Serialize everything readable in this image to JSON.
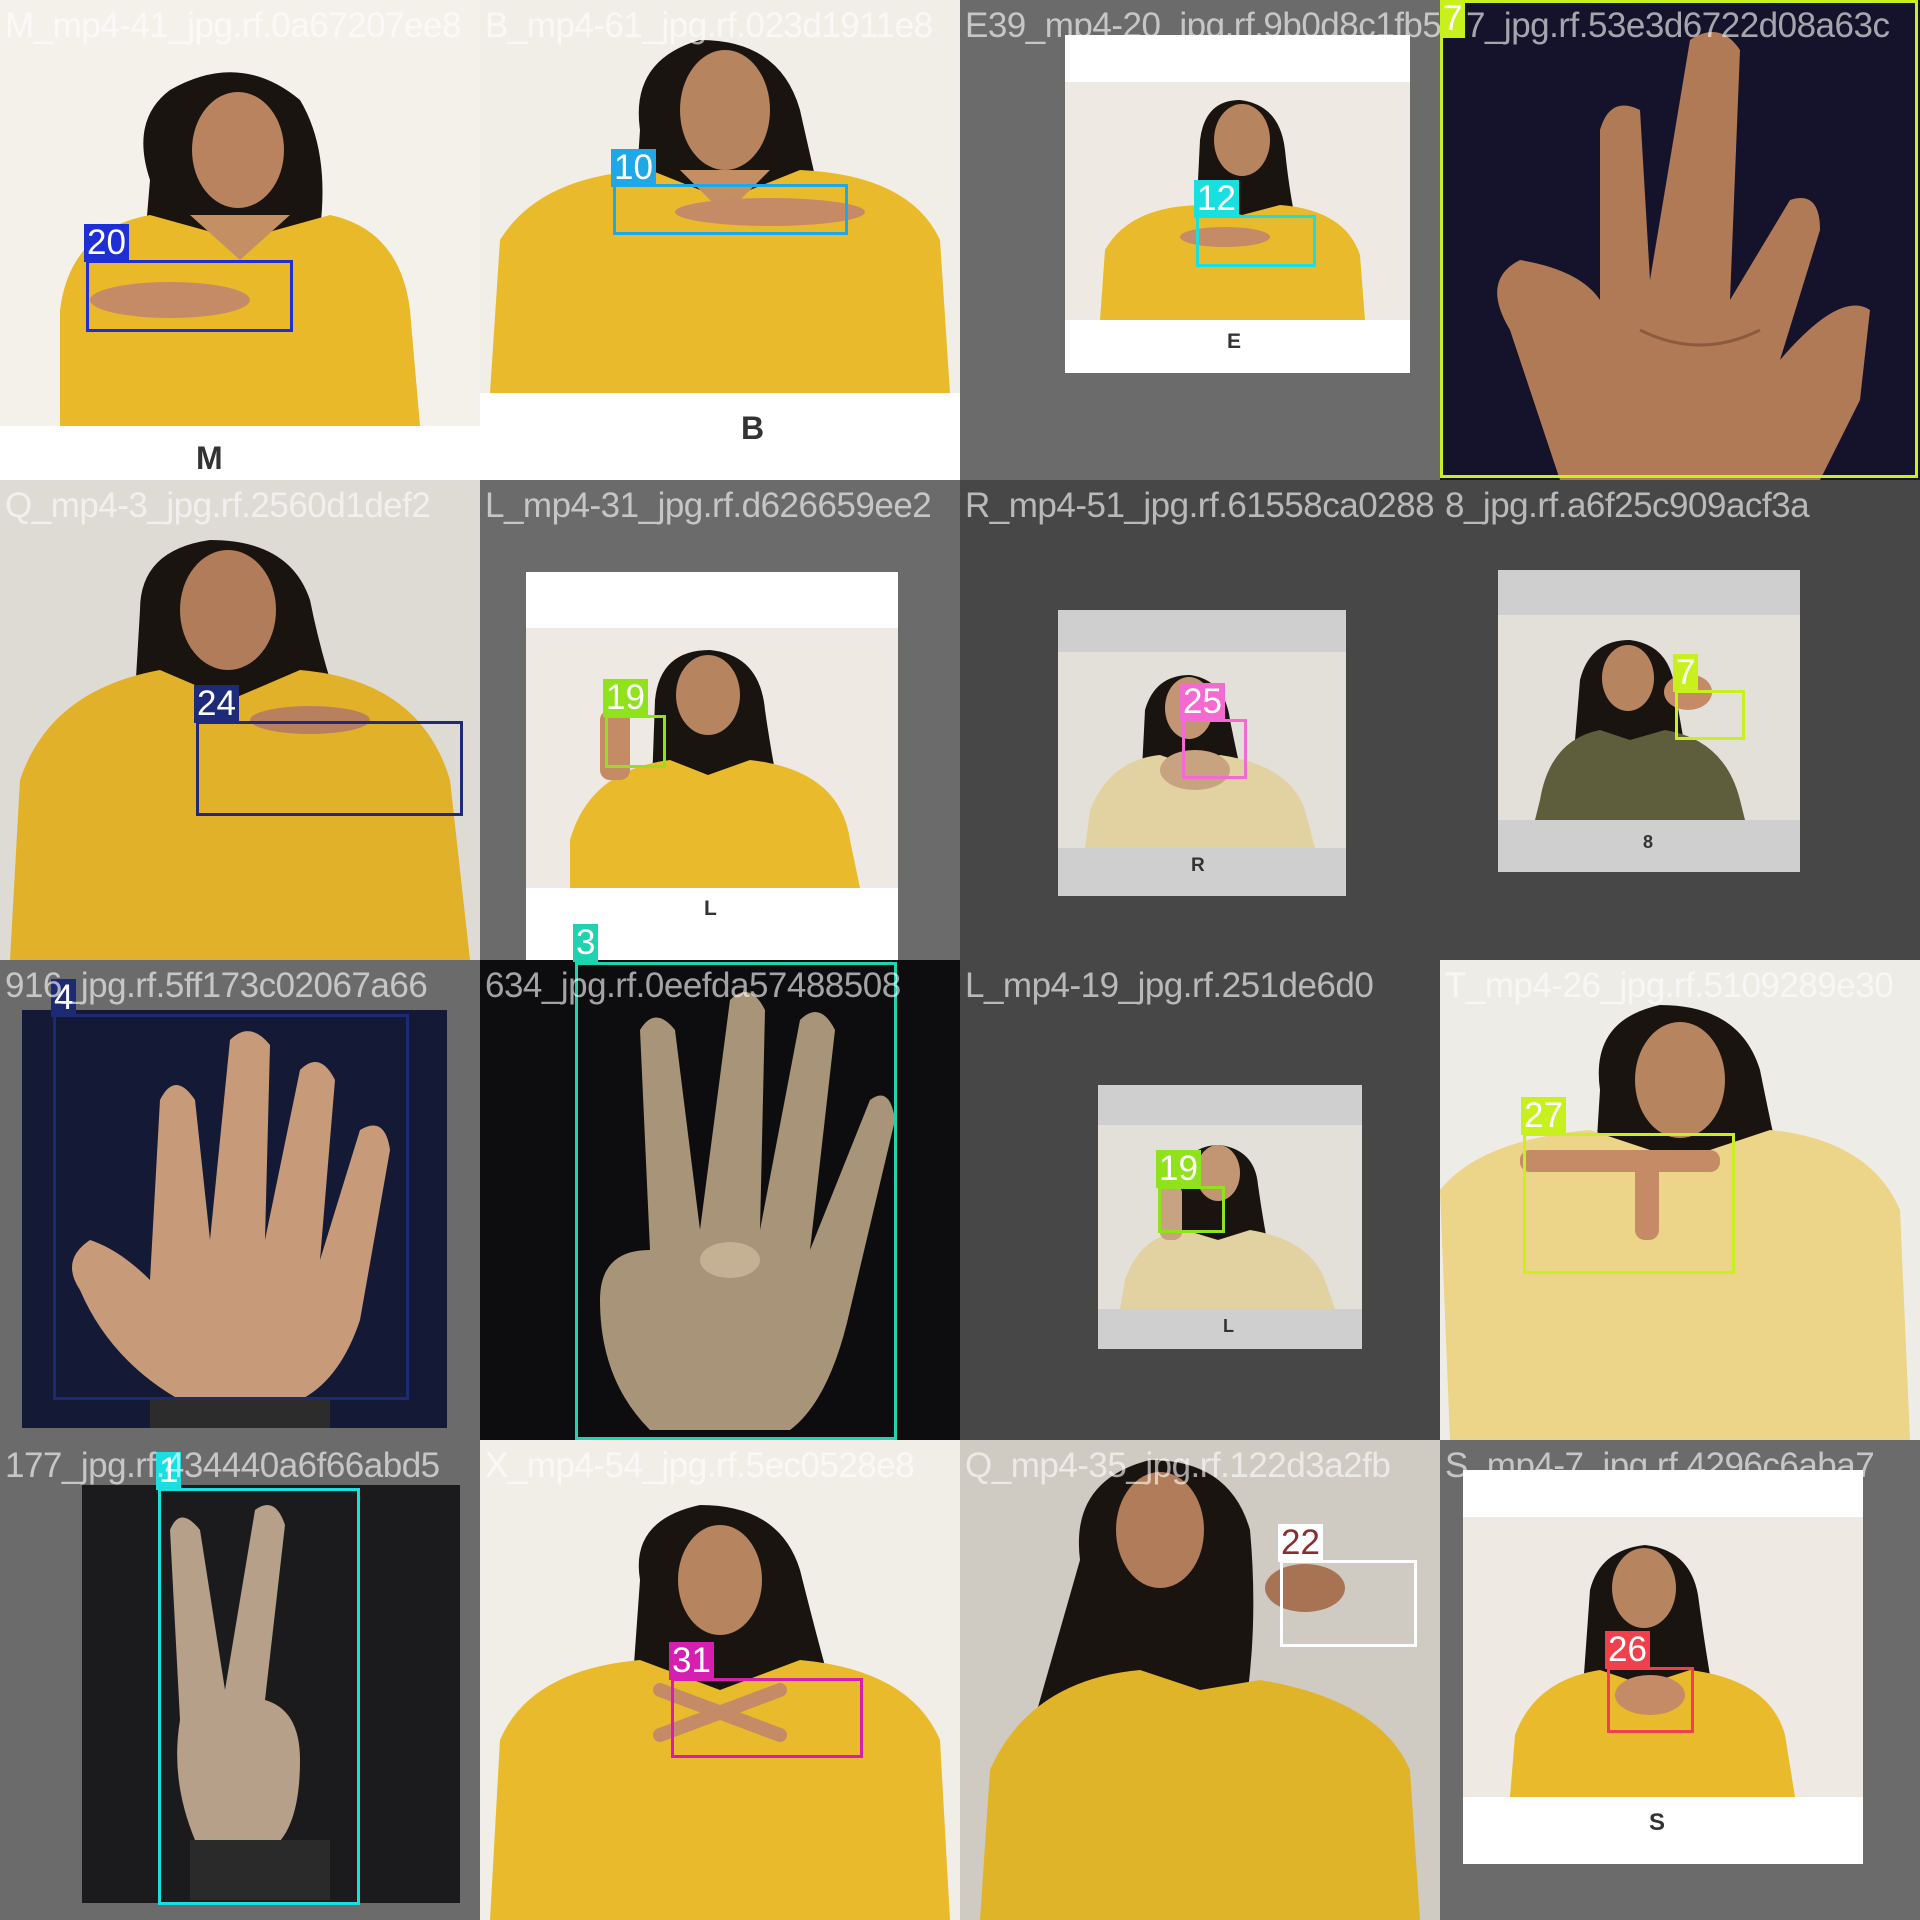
{
  "tiles": [
    {
      "filename": "M_mp4-41_jpg.rf.0a67207ee8",
      "box_label": "20",
      "box_color": "#1e2fd6",
      "caption": "M"
    },
    {
      "filename": "B_mp4-61_jpg.rf.023d1911e8",
      "box_label": "10",
      "box_color": "#1fa8e8",
      "caption": "B"
    },
    {
      "filename": "E39_mp4-20_jpg.rf.9b0d8c1fb5",
      "box_label": "12",
      "box_color": "#19e0e0",
      "caption": "E"
    },
    {
      "filename": "7_jpg.rf.53e3d6722d08a63c",
      "box_label": "7",
      "box_color": "#c8f01e",
      "caption": ""
    },
    {
      "filename": "Q_mp4-3_jpg.rf.2560d1def2",
      "box_label": "24",
      "box_color": "#1d2b7a",
      "caption": ""
    },
    {
      "filename": "L_mp4-31_jpg.rf.d626659ee2",
      "box_label": "19",
      "box_color": "#8fe21c",
      "caption": "L"
    },
    {
      "filename": "R_mp4-51_jpg.rf.61558ca0288",
      "box_label": "25",
      "box_color": "#f36bd0",
      "caption": "R"
    },
    {
      "filename": "8_jpg.rf.a6f25c909acf3a",
      "box_label": "7",
      "box_color": "#c8f01e",
      "caption": "8"
    },
    {
      "filename": "916_jpg.rf.5ff173c02067a66",
      "box_label": "4",
      "box_color": "#1e2a73",
      "caption": ""
    },
    {
      "filename": "634_jpg.rf.0eefda57488508",
      "box_label": "3",
      "box_color": "#1fd3b0",
      "caption": ""
    },
    {
      "filename": "L_mp4-19_jpg.rf.251de6d0",
      "box_label": "19",
      "box_color": "#8fe21c",
      "caption": "L"
    },
    {
      "filename": "T_mp4-26_jpg.rf.5109289e30",
      "box_label": "27",
      "box_color": "#c8f01e",
      "caption": ""
    },
    {
      "filename": "177_jpg.rf.434440a6f66abd5",
      "box_label": "1",
      "box_color": "#19e0e0",
      "caption": ""
    },
    {
      "filename": "X_mp4-54_jpg.rf.5ec0528e8",
      "box_label": "31",
      "box_color": "#d61fb0",
      "caption": ""
    },
    {
      "filename": "Q_mp4-35_jpg.rf.122d3a2fb",
      "box_label": "22",
      "box_color": "#ffffff",
      "caption": ""
    },
    {
      "filename": "S_mp4-7_jpg.rf.4296c6aba7",
      "box_label": "26",
      "box_color": "#f0404e",
      "caption": "S"
    }
  ]
}
